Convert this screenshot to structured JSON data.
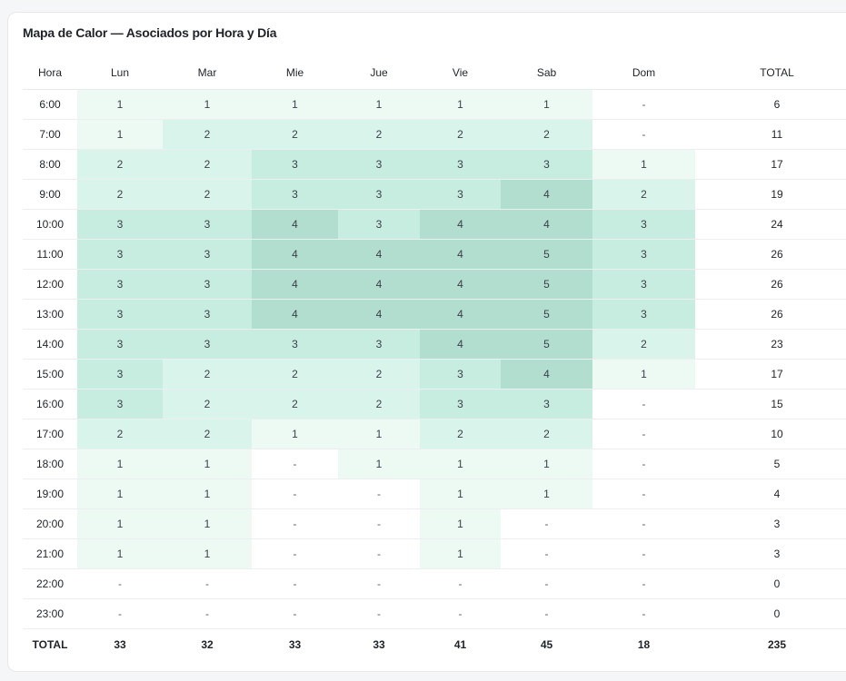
{
  "title": "Mapa de Calor — Asociados por Hora y Día",
  "chart_data": {
    "type": "heatmap",
    "title": "Mapa de Calor — Asociados por Hora y Día",
    "hour_header": "Hora",
    "total_header": "TOTAL",
    "days": [
      "Lun",
      "Mar",
      "Mie",
      "Jue",
      "Vie",
      "Sab",
      "Dom"
    ],
    "empty_symbol": "-",
    "colors": {
      "level_1": "#edfaf3",
      "level_2": "#d9f4ea",
      "level_3": "#c7ece0",
      "level_4": "#b2ded0"
    },
    "rows": [
      {
        "hour": "6:00",
        "values": [
          1,
          1,
          1,
          1,
          1,
          1,
          0
        ],
        "total": 6
      },
      {
        "hour": "7:00",
        "values": [
          1,
          2,
          2,
          2,
          2,
          2,
          0
        ],
        "total": 11
      },
      {
        "hour": "8:00",
        "values": [
          2,
          2,
          3,
          3,
          3,
          3,
          1
        ],
        "total": 17
      },
      {
        "hour": "9:00",
        "values": [
          2,
          2,
          3,
          3,
          3,
          4,
          2
        ],
        "total": 19
      },
      {
        "hour": "10:00",
        "values": [
          3,
          3,
          4,
          3,
          4,
          4,
          3
        ],
        "total": 24
      },
      {
        "hour": "11:00",
        "values": [
          3,
          3,
          4,
          4,
          4,
          5,
          3
        ],
        "total": 26
      },
      {
        "hour": "12:00",
        "values": [
          3,
          3,
          4,
          4,
          4,
          5,
          3
        ],
        "total": 26
      },
      {
        "hour": "13:00",
        "values": [
          3,
          3,
          4,
          4,
          4,
          5,
          3
        ],
        "total": 26
      },
      {
        "hour": "14:00",
        "values": [
          3,
          3,
          3,
          3,
          4,
          5,
          2
        ],
        "total": 23
      },
      {
        "hour": "15:00",
        "values": [
          3,
          2,
          2,
          2,
          3,
          4,
          1
        ],
        "total": 17
      },
      {
        "hour": "16:00",
        "values": [
          3,
          2,
          2,
          2,
          3,
          3,
          0
        ],
        "total": 15
      },
      {
        "hour": "17:00",
        "values": [
          2,
          2,
          1,
          1,
          2,
          2,
          0
        ],
        "total": 10
      },
      {
        "hour": "18:00",
        "values": [
          1,
          1,
          0,
          1,
          1,
          1,
          0
        ],
        "total": 5
      },
      {
        "hour": "19:00",
        "values": [
          1,
          1,
          0,
          0,
          1,
          1,
          0
        ],
        "total": 4
      },
      {
        "hour": "20:00",
        "values": [
          1,
          1,
          0,
          0,
          1,
          0,
          0
        ],
        "total": 3
      },
      {
        "hour": "21:00",
        "values": [
          1,
          1,
          0,
          0,
          1,
          0,
          0
        ],
        "total": 3
      },
      {
        "hour": "22:00",
        "values": [
          0,
          0,
          0,
          0,
          0,
          0,
          0
        ],
        "total": 0
      },
      {
        "hour": "23:00",
        "values": [
          0,
          0,
          0,
          0,
          0,
          0,
          0
        ],
        "total": 0
      }
    ],
    "totals_row": {
      "label": "TOTAL",
      "values": [
        33,
        32,
        33,
        33,
        41,
        45,
        18
      ],
      "total": 235
    }
  }
}
